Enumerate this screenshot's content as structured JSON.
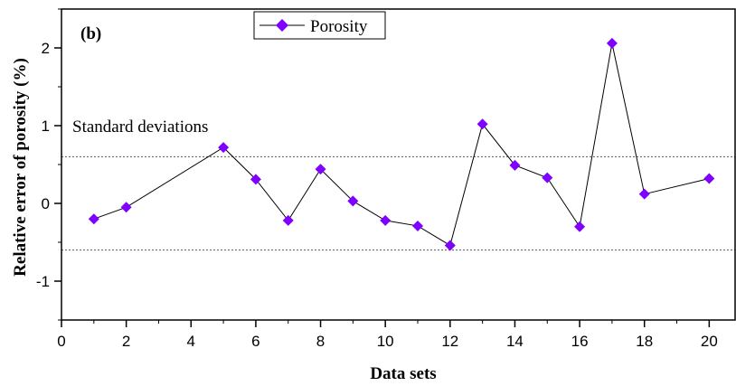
{
  "chart_data": {
    "type": "line",
    "panel_label": "(b)",
    "xlabel": "Data sets",
    "ylabel": "Relative error of porosity (%)",
    "xlim": [
      0,
      20.8
    ],
    "ylim": [
      -1.5,
      2.5
    ],
    "xticks": [
      0,
      2,
      4,
      6,
      8,
      10,
      12,
      14,
      16,
      18,
      20
    ],
    "yticks": [
      -1,
      0,
      1,
      2
    ],
    "grid": false,
    "legend_position": "top-center",
    "series": [
      {
        "name": "Porosity",
        "color": "#7f00ff",
        "marker": "diamond",
        "x": [
          1,
          2,
          5,
          6,
          7,
          8,
          9,
          10,
          11,
          12,
          13,
          14,
          15,
          16,
          17,
          18,
          20
        ],
        "y": [
          -0.2,
          -0.05,
          0.72,
          0.31,
          -0.22,
          0.44,
          0.03,
          -0.22,
          -0.29,
          -0.54,
          1.02,
          0.49,
          0.33,
          -0.3,
          2.06,
          0.12,
          0.32
        ]
      }
    ],
    "reference_lines": {
      "label": "Standard deviations",
      "values": [
        0.6,
        -0.6
      ],
      "style": "dotted"
    }
  }
}
